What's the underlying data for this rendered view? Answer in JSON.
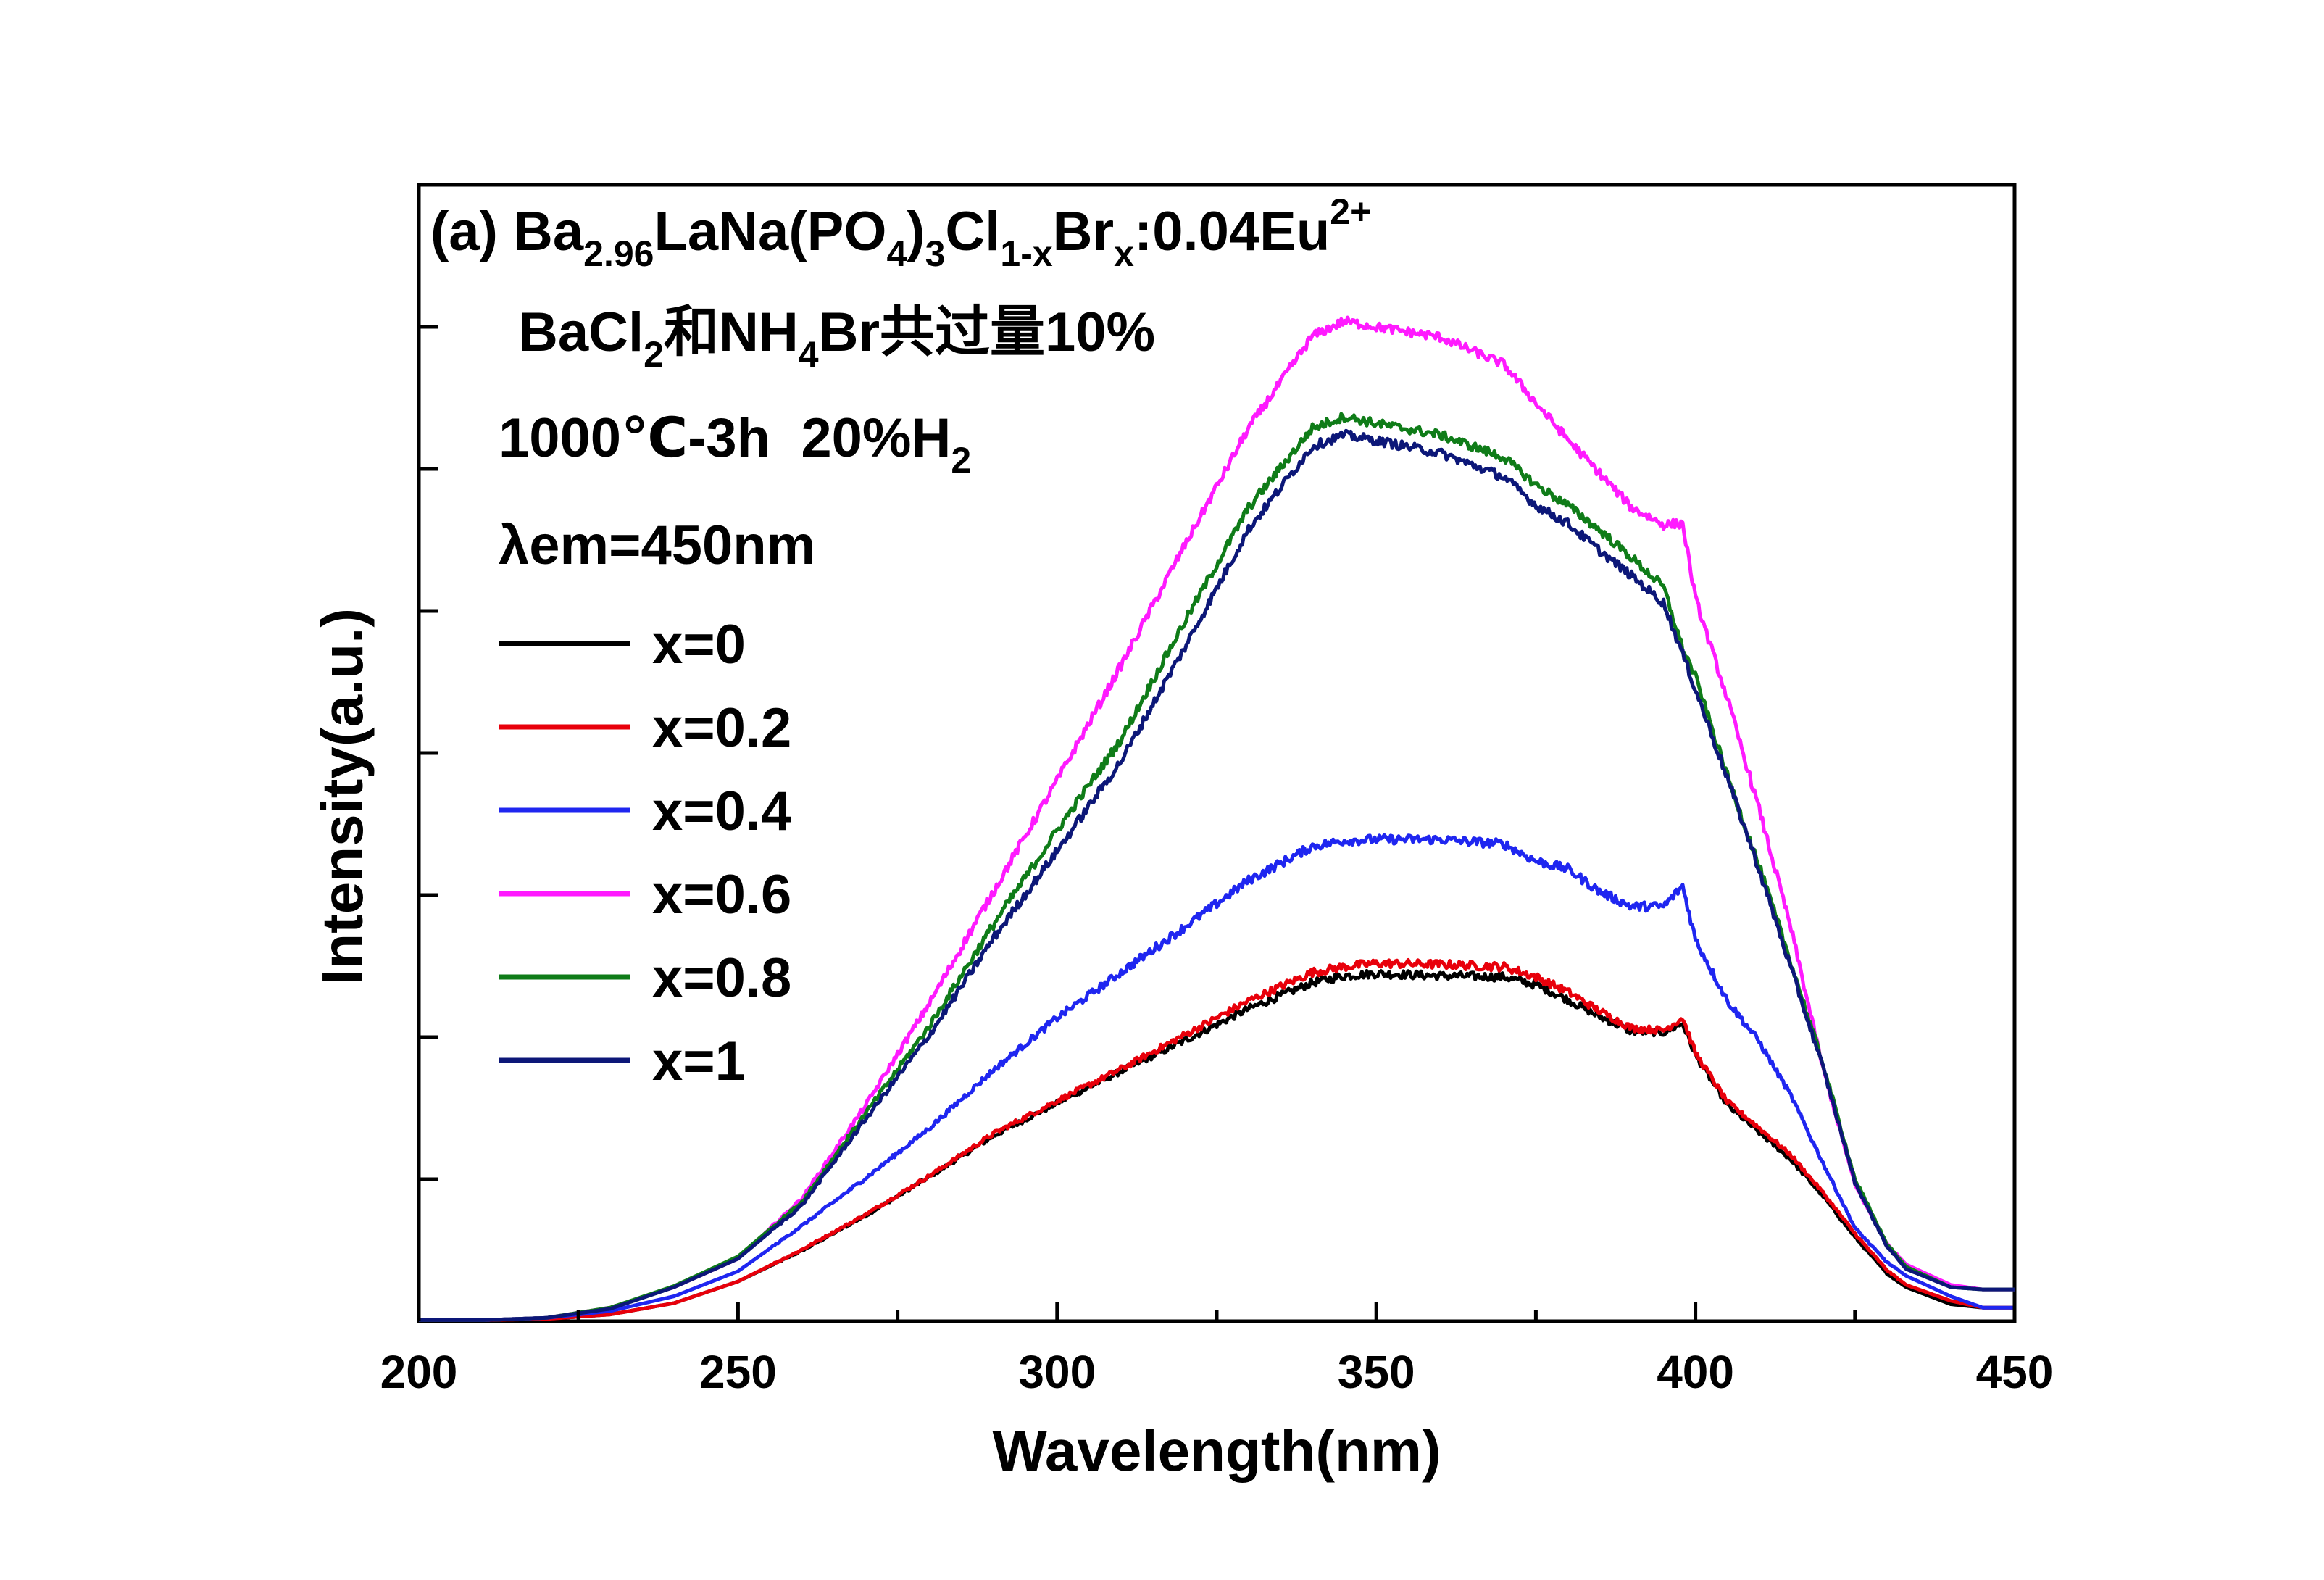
{
  "chart_data": {
    "type": "line",
    "xlabel": "Wavelength(nm)",
    "ylabel": "Intensity(a.u.)",
    "xlim": [
      200,
      450
    ],
    "ylim": [
      0,
      1.0
    ],
    "x_ticks": [
      200,
      250,
      300,
      350,
      400,
      450
    ],
    "grid": false,
    "legend_position": "left",
    "annotations": {
      "line1": {
        "prefix": "(a) Ba",
        "sub1": "2.96",
        "part2": "LaNa(PO",
        "sub2": "4",
        "part3": ")",
        "sub3": "3",
        "part4": "Cl",
        "sub4": "1-x",
        "part5": "Br",
        "sub5": "x",
        "part6": ":0.04Eu",
        "sup6": "2+"
      },
      "line2": {
        "part1": "BaCl",
        "sub1": "2",
        "part2": "和NH",
        "sub2": "4",
        "part3": "Br共过量10%"
      },
      "line3": {
        "part1": "1000℃-3h  20%H",
        "sub1": "2"
      },
      "line4": "λem=450nm"
    },
    "x": [
      200,
      210,
      220,
      230,
      240,
      250,
      260,
      270,
      280,
      290,
      300,
      310,
      320,
      330,
      340,
      345,
      350,
      360,
      370,
      375,
      380,
      385,
      390,
      395,
      398,
      400,
      405,
      410,
      415,
      420,
      425,
      430,
      433,
      440,
      445,
      450
    ],
    "series": [
      {
        "name": "x=0",
        "color": "#000000",
        "label_name": "x=0",
        "values": [
          0.001,
          0.001,
          0.002,
          0.006,
          0.016,
          0.035,
          0.062,
          0.093,
          0.127,
          0.163,
          0.192,
          0.22,
          0.247,
          0.275,
          0.298,
          0.304,
          0.306,
          0.304,
          0.303,
          0.296,
          0.283,
          0.268,
          0.255,
          0.254,
          0.262,
          0.234,
          0.19,
          0.166,
          0.142,
          0.11,
          0.074,
          0.042,
          0.03,
          0.015,
          0.012,
          0.012
        ]
      },
      {
        "name": "x=0.2",
        "color": "#e8000b",
        "label_name": "x=0.2",
        "values": [
          0.001,
          0.001,
          0.002,
          0.006,
          0.016,
          0.035,
          0.063,
          0.094,
          0.128,
          0.165,
          0.194,
          0.222,
          0.252,
          0.282,
          0.307,
          0.312,
          0.315,
          0.314,
          0.312,
          0.303,
          0.29,
          0.273,
          0.258,
          0.256,
          0.267,
          0.236,
          0.193,
          0.17,
          0.146,
          0.113,
          0.077,
          0.045,
          0.032,
          0.018,
          0.012,
          0.012
        ]
      },
      {
        "name": "x=0.4",
        "color": "#1f26f0",
        "label_name": "x=0.4",
        "values": [
          0.001,
          0.001,
          0.003,
          0.009,
          0.022,
          0.044,
          0.084,
          0.126,
          0.17,
          0.221,
          0.267,
          0.307,
          0.347,
          0.388,
          0.418,
          0.423,
          0.424,
          0.424,
          0.42,
          0.405,
          0.398,
          0.378,
          0.365,
          0.365,
          0.383,
          0.336,
          0.282,
          0.246,
          0.198,
          0.139,
          0.082,
          0.052,
          0.04,
          0.022,
          0.012,
          0.012
        ]
      },
      {
        "name": "x=0.6",
        "color": "#ff1aff",
        "label_name": "x=0.6",
        "values": [
          0.001,
          0.001,
          0.003,
          0.012,
          0.03,
          0.055,
          0.108,
          0.19,
          0.28,
          0.378,
          0.476,
          0.577,
          0.683,
          0.786,
          0.867,
          0.88,
          0.875,
          0.866,
          0.842,
          0.808,
          0.776,
          0.746,
          0.716,
          0.701,
          0.702,
          0.636,
          0.548,
          0.45,
          0.345,
          0.222,
          0.12,
          0.068,
          0.05,
          0.032,
          0.028,
          0.028
        ]
      },
      {
        "name": "x=0.8",
        "color": "#0f7c18",
        "label_name": "x=0.8",
        "values": [
          0.001,
          0.001,
          0.003,
          0.012,
          0.031,
          0.057,
          0.105,
          0.183,
          0.26,
          0.349,
          0.432,
          0.512,
          0.616,
          0.716,
          0.786,
          0.796,
          0.79,
          0.78,
          0.76,
          0.736,
          0.718,
          0.696,
          0.672,
          0.646,
          0.592,
          0.567,
          0.48,
          0.4,
          0.315,
          0.226,
          0.125,
          0.068,
          0.048,
          0.03,
          0.028,
          0.028
        ]
      },
      {
        "name": "x=1",
        "color": "#0c1778",
        "label_name": "x=1",
        "values": [
          0.001,
          0.001,
          0.003,
          0.011,
          0.03,
          0.055,
          0.102,
          0.178,
          0.252,
          0.337,
          0.414,
          0.493,
          0.593,
          0.697,
          0.77,
          0.78,
          0.775,
          0.764,
          0.743,
          0.718,
          0.702,
          0.678,
          0.656,
          0.632,
          0.587,
          0.556,
          0.478,
          0.397,
          0.31,
          0.223,
          0.122,
          0.066,
          0.046,
          0.03,
          0.028,
          0.028
        ]
      }
    ]
  }
}
